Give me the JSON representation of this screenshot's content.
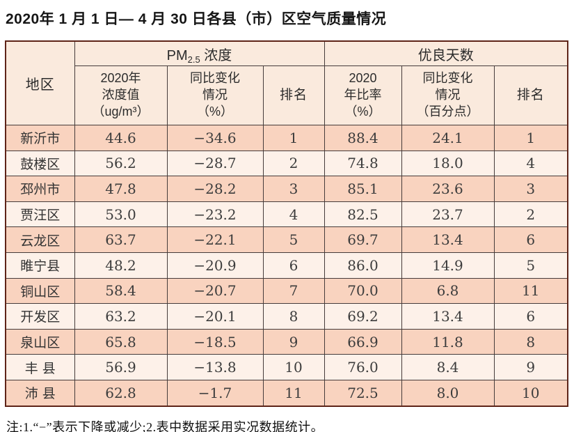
{
  "page": {
    "title": "2020年 1 月 1 日— 4 月 30 日各县（市）区空气质量情况",
    "note": "注:1.“−”表示下降或减少;2.表中数据采用实况数据统计。"
  },
  "table": {
    "region_header": "地区",
    "pm25_group": {
      "prefix": "PM",
      "sub": "2.5",
      "suffix": " 浓度"
    },
    "good_days_group": "优良天数",
    "sub_headers": {
      "pm25_value": "2020年\n浓度值\n（ug/m³）",
      "pm25_change": "同比变化\n情况\n（%）",
      "pm25_rank": "排名",
      "good_rate": "2020\n年比率\n（%）",
      "good_change": "同比变化\n情况\n（百分点）",
      "good_rank": "排名"
    },
    "rows": [
      {
        "region": "新沂市",
        "pm25_value": "44.6",
        "pm25_change": "−34.6",
        "pm25_rank": "1",
        "good_rate": "88.4",
        "good_change": "24.1",
        "good_rank": "1"
      },
      {
        "region": "鼓楼区",
        "pm25_value": "56.2",
        "pm25_change": "−28.7",
        "pm25_rank": "2",
        "good_rate": "74.8",
        "good_change": "18.0",
        "good_rank": "4"
      },
      {
        "region": "邳州市",
        "pm25_value": "47.8",
        "pm25_change": "−28.2",
        "pm25_rank": "3",
        "good_rate": "85.1",
        "good_change": "23.6",
        "good_rank": "3"
      },
      {
        "region": "贾汪区",
        "pm25_value": "53.0",
        "pm25_change": "−23.2",
        "pm25_rank": "4",
        "good_rate": "82.5",
        "good_change": "23.7",
        "good_rank": "2"
      },
      {
        "region": "云龙区",
        "pm25_value": "63.7",
        "pm25_change": "−22.1",
        "pm25_rank": "5",
        "good_rate": "69.7",
        "good_change": "13.4",
        "good_rank": "6"
      },
      {
        "region": "睢宁县",
        "pm25_value": "48.2",
        "pm25_change": "−20.9",
        "pm25_rank": "6",
        "good_rate": "86.0",
        "good_change": "14.9",
        "good_rank": "5"
      },
      {
        "region": "铜山区",
        "pm25_value": "58.4",
        "pm25_change": "−20.7",
        "pm25_rank": "7",
        "good_rate": "70.0",
        "good_change": "6.8",
        "good_rank": "11"
      },
      {
        "region": "开发区",
        "pm25_value": "63.2",
        "pm25_change": "−20.1",
        "pm25_rank": "8",
        "good_rate": "69.2",
        "good_change": "13.4",
        "good_rank": "6"
      },
      {
        "region": "泉山区",
        "pm25_value": "65.8",
        "pm25_change": "−18.5",
        "pm25_rank": "9",
        "good_rate": "66.9",
        "good_change": "11.8",
        "good_rank": "8"
      },
      {
        "region": "丰 县",
        "pm25_value": "56.9",
        "pm25_change": "−13.8",
        "pm25_rank": "10",
        "good_rate": "76.0",
        "good_change": "8.4",
        "good_rank": "9"
      },
      {
        "region": "沛 县",
        "pm25_value": "62.8",
        "pm25_change": "−1.7",
        "pm25_rank": "11",
        "good_rate": "72.5",
        "good_change": "8.0",
        "good_rank": "10"
      }
    ]
  }
}
